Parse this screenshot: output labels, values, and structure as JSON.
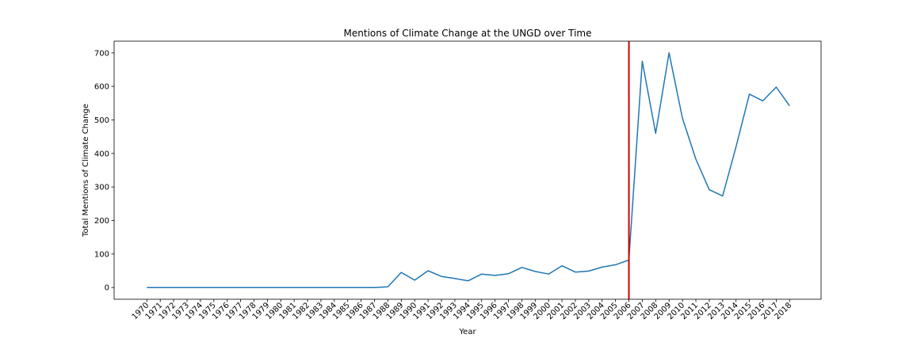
{
  "chart_data": {
    "type": "line",
    "title": "Mentions of Climate Change at the UNGD over Time",
    "xlabel": "Year",
    "ylabel": "Total Mentions of Climate Change",
    "ylim": [
      -35,
      735
    ],
    "yticks": [
      "0",
      "100",
      "200",
      "300",
      "400",
      "500",
      "600",
      "700"
    ],
    "grid": false,
    "categories": [
      "1970",
      "1971",
      "1972",
      "1973",
      "1974",
      "1975",
      "1976",
      "1977",
      "1978",
      "1979",
      "1980",
      "1981",
      "1982",
      "1983",
      "1984",
      "1985",
      "1986",
      "1987",
      "1988",
      "1989",
      "1990",
      "1991",
      "1992",
      "1993",
      "1994",
      "1995",
      "1996",
      "1997",
      "1998",
      "1999",
      "2000",
      "2001",
      "2002",
      "2003",
      "2004",
      "2005",
      "2006",
      "2007",
      "2008",
      "2009",
      "2010",
      "2011",
      "2012",
      "2013",
      "2014",
      "2015",
      "2016",
      "2017",
      "2018"
    ],
    "series": [
      {
        "values": [
          0,
          0,
          0,
          0,
          0,
          0,
          0,
          0,
          0,
          0,
          0,
          0,
          0,
          0,
          0,
          0,
          0,
          0,
          2,
          45,
          22,
          50,
          33,
          27,
          20,
          40,
          36,
          41,
          60,
          48,
          40,
          65,
          46,
          49,
          61,
          68,
          82,
          675,
          460,
          700,
          505,
          383,
          292,
          273,
          420,
          577,
          557,
          598,
          542
        ],
        "color": "#1f77b4"
      }
    ],
    "vline": {
      "x": "2006",
      "color": "#d62728"
    }
  }
}
